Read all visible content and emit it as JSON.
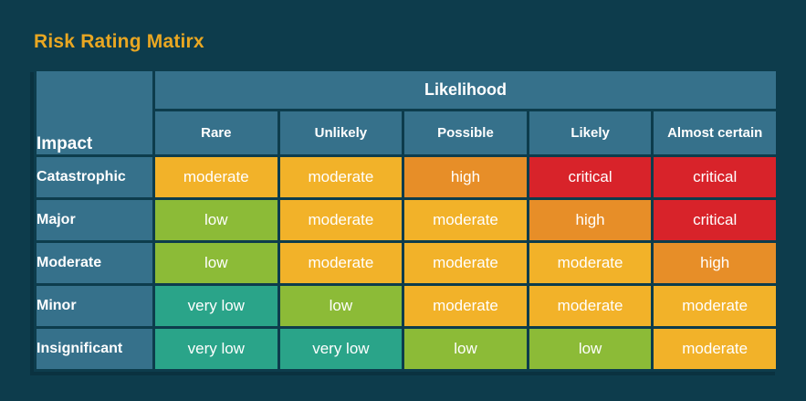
{
  "page": {
    "title": "Risk Rating Matirx",
    "background": "#0d3c4c",
    "title_color": "#e9a722",
    "table_header_bg": "#36718b",
    "table_border_color": "#0d3c4c",
    "table_shadow_color": "#0a3240"
  },
  "matrix": {
    "likelihood_header": "Likelihood",
    "impact_header": "Impact"
  },
  "chart_data": {
    "type": "heatmap",
    "title": "Risk Rating Matirx",
    "xlabel": "Likelihood",
    "ylabel": "Impact",
    "columns": [
      "Rare",
      "Unlikely",
      "Possible",
      "Likely",
      "Almost certain"
    ],
    "rows": [
      {
        "label": "Catastrophic",
        "values": [
          "moderate",
          "moderate",
          "high",
          "critical",
          "critical"
        ]
      },
      {
        "label": "Major",
        "values": [
          "low",
          "moderate",
          "moderate",
          "high",
          "critical"
        ]
      },
      {
        "label": "Moderate",
        "values": [
          "low",
          "moderate",
          "moderate",
          "moderate",
          "high"
        ]
      },
      {
        "label": "Minor",
        "values": [
          "very low",
          "low",
          "moderate",
          "moderate",
          "moderate"
        ]
      },
      {
        "label": "Insignificant",
        "values": [
          "very low",
          "very low",
          "low",
          "low",
          "moderate"
        ]
      }
    ],
    "level_colors": {
      "very low": "#2aa489",
      "low": "#8cbb37",
      "moderate": "#f2b229",
      "high": "#e78e28",
      "critical": "#d8232a"
    }
  }
}
